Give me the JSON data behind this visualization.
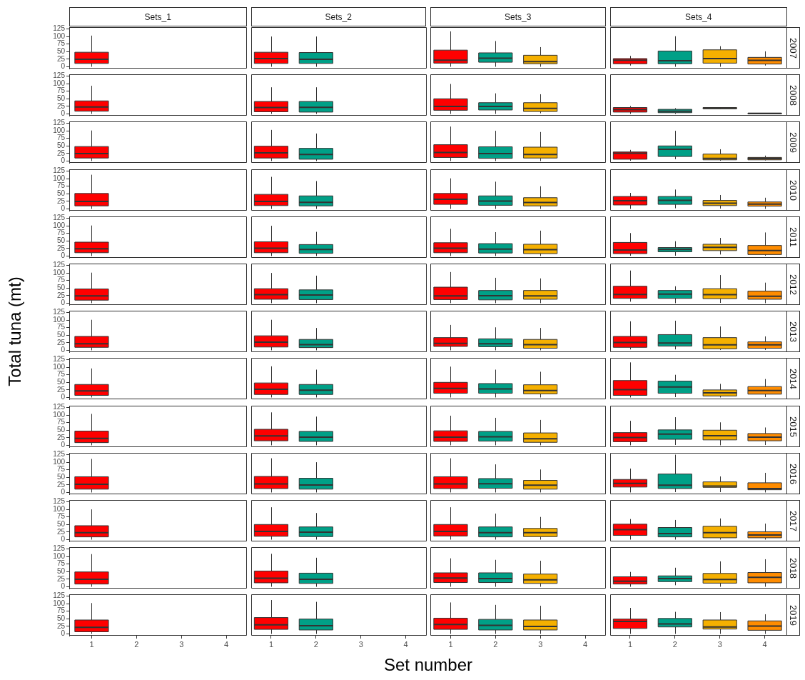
{
  "chart_data": [
    {
      "type": "box",
      "annotations": [
        "Sets_1",
        "Sets_2",
        "Sets_3",
        "Sets_4"
      ],
      "y2label": "2007",
      "categories": [
        "1",
        "2",
        "3",
        "4",
        "1",
        "2",
        "3",
        "4",
        "1",
        "2",
        "3",
        "4",
        "1",
        "2",
        "3",
        "4"
      ],
      "boxes": [
        {
          "low": 0,
          "q1": 11,
          "median": 25,
          "q3": 48,
          "high": 103
        },
        null,
        null,
        null,
        {
          "low": 0,
          "q1": 11,
          "median": 27,
          "q3": 48,
          "high": 100
        },
        {
          "low": 0,
          "q1": 11,
          "median": 25,
          "q3": 47,
          "high": 100
        },
        null,
        null,
        {
          "low": 0,
          "q1": 12,
          "median": 22,
          "q3": 55,
          "high": 117
        },
        {
          "low": 0,
          "q1": 15,
          "median": 28,
          "q3": 46,
          "high": 85
        },
        {
          "low": 0,
          "q1": 10,
          "median": 17,
          "q3": 38,
          "high": 65
        },
        null,
        {
          "low": 4,
          "q1": 10,
          "median": 22,
          "q3": 27,
          "high": 36
        },
        {
          "low": 0,
          "q1": 10,
          "median": 20,
          "q3": 52,
          "high": 101
        },
        {
          "low": 0,
          "q1": 12,
          "median": 27,
          "q3": 56,
          "high": 68
        },
        {
          "low": 4,
          "q1": 9,
          "median": 21,
          "q3": 31,
          "high": 51
        }
      ],
      "colors": [
        "#ff0000",
        null,
        null,
        null,
        "#ff0000",
        "#00a087",
        null,
        null,
        "#ff0000",
        "#00a087",
        "#f5b000",
        null,
        "#ff0000",
        "#00a087",
        "#f5b000",
        "#ff8c00"
      ],
      "ylim": [
        -6,
        131
      ],
      "yticks": [
        0,
        25,
        50,
        75,
        100,
        125
      ],
      "tick_labels": "y"
    },
    {
      "type": "box",
      "y2label": "2008",
      "categories": [
        "1",
        "2",
        "3",
        "4",
        "1",
        "2",
        "3",
        "4",
        "1",
        "2",
        "3",
        "4",
        "1",
        "2",
        "3",
        "4"
      ],
      "boxes": [
        {
          "low": 0,
          "q1": 9,
          "median": 23,
          "q3": 43,
          "high": 93
        },
        null,
        null,
        null,
        {
          "low": 0,
          "q1": 7,
          "median": 21,
          "q3": 41,
          "high": 88
        },
        {
          "low": 0,
          "q1": 6,
          "median": 22,
          "q3": 41,
          "high": 88
        },
        null,
        null,
        {
          "low": 0,
          "q1": 12,
          "median": 25,
          "q3": 50,
          "high": 99
        },
        {
          "low": 0,
          "q1": 13,
          "median": 25,
          "q3": 37,
          "high": 68
        },
        {
          "low": 2,
          "q1": 8,
          "median": 18,
          "q3": 37,
          "high": 65
        },
        null,
        {
          "low": 0,
          "q1": 6,
          "median": 14,
          "q3": 21,
          "high": 26
        },
        {
          "low": 0,
          "q1": 4,
          "median": 9,
          "q3": 15,
          "high": 19
        },
        {
          "low": 16,
          "q1": 17,
          "median": 19,
          "q3": 21,
          "high": 22
        },
        {
          "low": 0,
          "q1": 0,
          "median": 1,
          "q3": 3,
          "high": 3
        }
      ],
      "colors": [
        "#ff0000",
        null,
        null,
        null,
        "#ff0000",
        "#00a087",
        null,
        null,
        "#ff0000",
        "#00a087",
        "#f5b000",
        null,
        "#ff0000",
        "#00a087",
        "#f5b000",
        "#ff8c00"
      ],
      "ylim": [
        -6,
        131
      ],
      "yticks": [
        0,
        25,
        50,
        75,
        100,
        125
      ],
      "tick_labels": "y"
    },
    {
      "type": "box",
      "y2label": "2009",
      "categories": [
        "1",
        "2",
        "3",
        "4",
        "1",
        "2",
        "3",
        "4",
        "1",
        "2",
        "3",
        "4",
        "1",
        "2",
        "3",
        "4"
      ],
      "boxes": [
        {
          "low": 0,
          "q1": 10,
          "median": 25,
          "q3": 48,
          "high": 101
        },
        null,
        null,
        null,
        {
          "low": 0,
          "q1": 10,
          "median": 27,
          "q3": 49,
          "high": 103
        },
        {
          "low": 0,
          "q1": 6,
          "median": 22,
          "q3": 42,
          "high": 91
        },
        null,
        null,
        {
          "low": 0,
          "q1": 12,
          "median": 28,
          "q3": 54,
          "high": 114
        },
        {
          "low": 0,
          "q1": 9,
          "median": 25,
          "q3": 47,
          "high": 100
        },
        {
          "low": 0,
          "q1": 10,
          "median": 22,
          "q3": 46,
          "high": 96
        },
        null,
        {
          "low": 1,
          "q1": 6,
          "median": 26,
          "q3": 30,
          "high": 37
        },
        {
          "low": 6,
          "q1": 15,
          "median": 39,
          "q3": 50,
          "high": 100
        },
        {
          "low": 1,
          "q1": 4,
          "median": 9,
          "q3": 23,
          "high": 39
        },
        {
          "low": 2,
          "q1": 4,
          "median": 8,
          "q3": 12,
          "high": 18
        }
      ],
      "colors": [
        "#ff0000",
        null,
        null,
        null,
        "#ff0000",
        "#00a087",
        null,
        null,
        "#ff0000",
        "#00a087",
        "#f5b000",
        null,
        "#ff0000",
        "#00a087",
        "#f5b000",
        "#ff8c00"
      ],
      "ylim": [
        -6,
        131
      ],
      "yticks": [
        0,
        25,
        50,
        75,
        100,
        125
      ],
      "tick_labels": "y"
    },
    {
      "type": "box",
      "y2label": "2010",
      "categories": [
        "1",
        "2",
        "3",
        "4",
        "1",
        "2",
        "3",
        "4",
        "1",
        "2",
        "3",
        "4",
        "1",
        "2",
        "3",
        "4"
      ],
      "boxes": [
        {
          "low": 0,
          "q1": 10,
          "median": 25,
          "q3": 51,
          "high": 113
        },
        null,
        null,
        null,
        {
          "low": 0,
          "q1": 11,
          "median": 25,
          "q3": 48,
          "high": 106
        },
        {
          "low": 0,
          "q1": 10,
          "median": 22,
          "q3": 43,
          "high": 92
        },
        null,
        null,
        {
          "low": 0,
          "q1": 15,
          "median": 32,
          "q3": 51,
          "high": 101
        },
        {
          "low": 0,
          "q1": 12,
          "median": 26,
          "q3": 43,
          "high": 90
        },
        {
          "low": 0,
          "q1": 10,
          "median": 21,
          "q3": 37,
          "high": 75
        },
        null,
        {
          "low": 0,
          "q1": 13,
          "median": 27,
          "q3": 41,
          "high": 53
        },
        {
          "low": 2,
          "q1": 15,
          "median": 28,
          "q3": 41,
          "high": 64
        },
        {
          "low": 1,
          "q1": 11,
          "median": 19,
          "q3": 28,
          "high": 46
        },
        {
          "low": 0,
          "q1": 9,
          "median": 16,
          "q3": 23,
          "high": 37
        }
      ],
      "colors": [
        "#ff0000",
        null,
        null,
        null,
        "#ff0000",
        "#00a087",
        null,
        null,
        "#ff0000",
        "#00a087",
        "#f5b000",
        null,
        "#ff0000",
        "#00a087",
        "#f5b000",
        "#ff8c00"
      ],
      "ylim": [
        -6,
        131
      ],
      "yticks": [
        0,
        25,
        50,
        75,
        100,
        125
      ],
      "tick_labels": "y"
    },
    {
      "type": "box",
      "y2label": "2011",
      "categories": [
        "1",
        "2",
        "3",
        "4",
        "1",
        "2",
        "3",
        "4",
        "1",
        "2",
        "3",
        "4",
        "1",
        "2",
        "3",
        "4"
      ],
      "boxes": [
        {
          "low": 0,
          "q1": 11,
          "median": 24,
          "q3": 46,
          "high": 101
        },
        null,
        null,
        null,
        {
          "low": 0,
          "q1": 11,
          "median": 26,
          "q3": 47,
          "high": 100
        },
        {
          "low": 0,
          "q1": 9,
          "median": 22,
          "q3": 38,
          "high": 80
        },
        null,
        null,
        {
          "low": 0,
          "q1": 11,
          "median": 26,
          "q3": 44,
          "high": 90
        },
        {
          "low": 0,
          "q1": 10,
          "median": 23,
          "q3": 41,
          "high": 79
        },
        {
          "low": 0,
          "q1": 8,
          "median": 21,
          "q3": 39,
          "high": 84
        },
        null,
        {
          "low": 1,
          "q1": 8,
          "median": 20,
          "q3": 45,
          "high": 76
        },
        {
          "low": 1,
          "q1": 14,
          "median": 22,
          "q3": 28,
          "high": 49
        },
        {
          "low": 5,
          "q1": 18,
          "median": 29,
          "q3": 39,
          "high": 60
        },
        {
          "low": 1,
          "q1": 5,
          "median": 18,
          "q3": 35,
          "high": 78
        }
      ],
      "colors": [
        "#ff0000",
        null,
        null,
        null,
        "#ff0000",
        "#00a087",
        null,
        null,
        "#ff0000",
        "#00a087",
        "#f5b000",
        null,
        "#ff0000",
        "#00a087",
        "#f5b000",
        "#ff8c00"
      ],
      "ylim": [
        -6,
        131
      ],
      "yticks": [
        0,
        25,
        50,
        75,
        100,
        125
      ],
      "tick_labels": "y"
    },
    {
      "type": "box",
      "y2label": "2012",
      "categories": [
        "1",
        "2",
        "3",
        "4",
        "1",
        "2",
        "3",
        "4",
        "1",
        "2",
        "3",
        "4",
        "1",
        "2",
        "3",
        "4"
      ],
      "boxes": [
        {
          "low": 0,
          "q1": 10,
          "median": 24,
          "q3": 47,
          "high": 101
        },
        null,
        null,
        null,
        {
          "low": 0,
          "q1": 13,
          "median": 28,
          "q3": 48,
          "high": 100
        },
        {
          "low": 0,
          "q1": 12,
          "median": 27,
          "q3": 44,
          "high": 91
        },
        null,
        null,
        {
          "low": 0,
          "q1": 12,
          "median": 24,
          "q3": 53,
          "high": 103
        },
        {
          "low": 0,
          "q1": 11,
          "median": 25,
          "q3": 42,
          "high": 84
        },
        {
          "low": 0,
          "q1": 13,
          "median": 24,
          "q3": 42,
          "high": 82
        },
        null,
        {
          "low": 5,
          "q1": 16,
          "median": 29,
          "q3": 56,
          "high": 108
        },
        {
          "low": 0,
          "q1": 16,
          "median": 30,
          "q3": 42,
          "high": 56
        },
        {
          "low": 1,
          "q1": 15,
          "median": 28,
          "q3": 48,
          "high": 93
        },
        {
          "low": 0,
          "q1": 13,
          "median": 23,
          "q3": 40,
          "high": 68
        }
      ],
      "colors": [
        "#ff0000",
        null,
        null,
        null,
        "#ff0000",
        "#00a087",
        null,
        null,
        "#ff0000",
        "#00a087",
        "#f5b000",
        null,
        "#ff0000",
        "#00a087",
        "#f5b000",
        "#ff8c00"
      ],
      "ylim": [
        -6,
        131
      ],
      "yticks": [
        0,
        25,
        50,
        75,
        100,
        125
      ],
      "tick_labels": "y"
    },
    {
      "type": "box",
      "ylabel": "Total tuna (mt)",
      "y2label": "2013",
      "categories": [
        "1",
        "2",
        "3",
        "4",
        "1",
        "2",
        "3",
        "4",
        "1",
        "2",
        "3",
        "4",
        "1",
        "2",
        "3",
        "4"
      ],
      "boxes": [
        {
          "low": 0,
          "q1": 10,
          "median": 22,
          "q3": 46,
          "high": 101
        },
        null,
        null,
        null,
        {
          "low": 0,
          "q1": 11,
          "median": 27,
          "q3": 48,
          "high": 101
        },
        {
          "low": 0,
          "q1": 9,
          "median": 19,
          "q3": 36,
          "high": 74
        },
        null,
        null,
        {
          "low": 0,
          "q1": 13,
          "median": 23,
          "q3": 42,
          "high": 84
        },
        {
          "low": 0,
          "q1": 12,
          "median": 22,
          "q3": 38,
          "high": 76
        },
        {
          "low": 0,
          "q1": 7,
          "median": 19,
          "q3": 36,
          "high": 74
        },
        null,
        {
          "low": 3,
          "q1": 10,
          "median": 26,
          "q3": 46,
          "high": 96
        },
        {
          "low": 3,
          "q1": 14,
          "median": 24,
          "q3": 52,
          "high": 98
        },
        {
          "low": 1,
          "q1": 5,
          "median": 18,
          "q3": 42,
          "high": 79
        },
        {
          "low": 1,
          "q1": 7,
          "median": 18,
          "q3": 28,
          "high": 46
        }
      ],
      "colors": [
        "#ff0000",
        null,
        null,
        null,
        "#ff0000",
        "#00a087",
        null,
        null,
        "#ff0000",
        "#00a087",
        "#f5b000",
        null,
        "#ff0000",
        "#00a087",
        "#f5b000",
        "#ff8c00"
      ],
      "ylim": [
        -6,
        131
      ],
      "yticks": [
        0,
        25,
        50,
        75,
        100,
        125
      ],
      "tick_labels": "y"
    },
    {
      "type": "box",
      "y2label": "2014",
      "categories": [
        "1",
        "2",
        "3",
        "4",
        "1",
        "2",
        "3",
        "4",
        "1",
        "2",
        "3",
        "4",
        "1",
        "2",
        "3",
        "4"
      ],
      "boxes": [
        {
          "low": 0,
          "q1": 7,
          "median": 22,
          "q3": 43,
          "high": 96
        },
        null,
        null,
        null,
        {
          "low": 0,
          "q1": 10,
          "median": 27,
          "q3": 48,
          "high": 103
        },
        {
          "low": 0,
          "q1": 10,
          "median": 24,
          "q3": 43,
          "high": 92
        },
        null,
        null,
        {
          "low": 0,
          "q1": 14,
          "median": 30,
          "q3": 50,
          "high": 102
        },
        {
          "low": 0,
          "q1": 14,
          "median": 28,
          "q3": 46,
          "high": 92
        },
        {
          "low": 0,
          "q1": 12,
          "median": 23,
          "q3": 42,
          "high": 85
        },
        null,
        {
          "low": 0,
          "q1": 7,
          "median": 26,
          "q3": 56,
          "high": 116
        },
        {
          "low": 1,
          "q1": 14,
          "median": 35,
          "q3": 54,
          "high": 75
        },
        {
          "low": 0,
          "q1": 5,
          "median": 15,
          "q3": 25,
          "high": 45
        },
        {
          "low": 1,
          "q1": 11,
          "median": 23,
          "q3": 36,
          "high": 61
        }
      ],
      "colors": [
        "#ff0000",
        null,
        null,
        null,
        "#ff0000",
        "#00a087",
        null,
        null,
        "#ff0000",
        "#00a087",
        "#f5b000",
        null,
        "#ff0000",
        "#00a087",
        "#f5b000",
        "#ff8c00"
      ],
      "ylim": [
        -6,
        131
      ],
      "yticks": [
        0,
        25,
        50,
        75,
        100,
        125
      ],
      "tick_labels": "y"
    },
    {
      "type": "box",
      "y2label": "2015",
      "categories": [
        "1",
        "2",
        "3",
        "4",
        "1",
        "2",
        "3",
        "4",
        "1",
        "2",
        "3",
        "4",
        "1",
        "2",
        "3",
        "4"
      ],
      "boxes": [
        {
          "low": 0,
          "q1": 9,
          "median": 23,
          "q3": 47,
          "high": 104
        },
        null,
        null,
        null,
        {
          "low": 0,
          "q1": 15,
          "median": 31,
          "q3": 53,
          "high": 109
        },
        {
          "low": 0,
          "q1": 13,
          "median": 27,
          "q3": 46,
          "high": 95
        },
        null,
        null,
        {
          "low": 0,
          "q1": 13,
          "median": 27,
          "q3": 48,
          "high": 98
        },
        {
          "low": 0,
          "q1": 14,
          "median": 28,
          "q3": 46,
          "high": 91
        },
        {
          "low": 0,
          "q1": 10,
          "median": 22,
          "q3": 41,
          "high": 84
        },
        null,
        {
          "low": 0,
          "q1": 12,
          "median": 26,
          "q3": 42,
          "high": 81
        },
        {
          "low": 1,
          "q1": 20,
          "median": 37,
          "q3": 51,
          "high": 93
        },
        {
          "low": 0,
          "q1": 18,
          "median": 32,
          "q3": 50,
          "high": 76
        },
        {
          "low": 1,
          "q1": 15,
          "median": 27,
          "q3": 39,
          "high": 59
        }
      ],
      "colors": [
        "#ff0000",
        null,
        null,
        null,
        "#ff0000",
        "#00a087",
        null,
        null,
        "#ff0000",
        "#00a087",
        "#f5b000",
        null,
        "#ff0000",
        "#00a087",
        "#f5b000",
        "#ff8c00"
      ],
      "ylim": [
        -6,
        131
      ],
      "yticks": [
        0,
        25,
        50,
        75,
        100,
        125
      ],
      "tick_labels": "y"
    },
    {
      "type": "box",
      "y2label": "2016",
      "categories": [
        "1",
        "2",
        "3",
        "4",
        "1",
        "2",
        "3",
        "4",
        "1",
        "2",
        "3",
        "4",
        "1",
        "2",
        "3",
        "4"
      ],
      "boxes": [
        {
          "low": 0,
          "q1": 11,
          "median": 27,
          "q3": 52,
          "high": 111
        },
        null,
        null,
        null,
        {
          "low": 0,
          "q1": 13,
          "median": 28,
          "q3": 53,
          "high": 113
        },
        {
          "low": 0,
          "q1": 11,
          "median": 25,
          "q3": 47,
          "high": 100
        },
        null,
        null,
        {
          "low": 0,
          "q1": 13,
          "median": 28,
          "q3": 52,
          "high": 113
        },
        {
          "low": 0,
          "q1": 14,
          "median": 29,
          "q3": 46,
          "high": 93
        },
        {
          "low": 0,
          "q1": 11,
          "median": 24,
          "q3": 40,
          "high": 76
        },
        null,
        {
          "low": 0,
          "q1": 18,
          "median": 30,
          "q3": 43,
          "high": 79
        },
        {
          "low": 1,
          "q1": 13,
          "median": 24,
          "q3": 61,
          "high": 125
        },
        {
          "low": 1,
          "q1": 17,
          "median": 21,
          "q3": 35,
          "high": 53
        },
        {
          "low": 0,
          "q1": 9,
          "median": 13,
          "q3": 32,
          "high": 65
        }
      ],
      "colors": [
        "#ff0000",
        null,
        null,
        null,
        "#ff0000",
        "#00a087",
        null,
        null,
        "#ff0000",
        "#00a087",
        "#f5b000",
        null,
        "#ff0000",
        "#00a087",
        "#f5b000",
        "#ff8c00"
      ],
      "ylim": [
        -6,
        131
      ],
      "yticks": [
        0,
        25,
        50,
        75,
        100,
        125
      ],
      "tick_labels": "y"
    },
    {
      "type": "box",
      "y2label": "2017",
      "categories": [
        "1",
        "2",
        "3",
        "4",
        "1",
        "2",
        "3",
        "4",
        "1",
        "2",
        "3",
        "4",
        "1",
        "2",
        "3",
        "4"
      ],
      "boxes": [
        {
          "low": 0,
          "q1": 9,
          "median": 23,
          "q3": 46,
          "high": 100
        },
        null,
        null,
        null,
        {
          "low": 0,
          "q1": 11,
          "median": 27,
          "q3": 50,
          "high": 107
        },
        {
          "low": 0,
          "q1": 10,
          "median": 25,
          "q3": 42,
          "high": 88
        },
        null,
        null,
        {
          "low": 0,
          "q1": 12,
          "median": 27,
          "q3": 50,
          "high": 107
        },
        {
          "low": 0,
          "q1": 9,
          "median": 23,
          "q3": 42,
          "high": 86
        },
        {
          "low": 0,
          "q1": 10,
          "median": 23,
          "q3": 37,
          "high": 75
        },
        null,
        {
          "low": 0,
          "q1": 14,
          "median": 33,
          "q3": 51,
          "high": 68
        },
        {
          "low": 0,
          "q1": 9,
          "median": 20,
          "q3": 40,
          "high": 65
        },
        {
          "low": 0,
          "q1": 6,
          "median": 23,
          "q3": 44,
          "high": 70
        },
        {
          "low": 0,
          "q1": 6,
          "median": 15,
          "q3": 26,
          "high": 53
        }
      ],
      "colors": [
        "#ff0000",
        null,
        null,
        null,
        "#ff0000",
        "#00a087",
        null,
        null,
        "#ff0000",
        "#00a087",
        "#f5b000",
        null,
        "#ff0000",
        "#00a087",
        "#f5b000",
        "#ff8c00"
      ],
      "ylim": [
        -6,
        131
      ],
      "yticks": [
        0,
        25,
        50,
        75,
        100,
        125
      ],
      "tick_labels": "y"
    },
    {
      "type": "box",
      "y2label": "2018",
      "categories": [
        "1",
        "2",
        "3",
        "4",
        "1",
        "2",
        "3",
        "4",
        "1",
        "2",
        "3",
        "4",
        "1",
        "2",
        "3",
        "4"
      ],
      "boxes": [
        {
          "low": 0,
          "q1": 9,
          "median": 25,
          "q3": 49,
          "high": 108
        },
        null,
        null,
        null,
        {
          "low": 0,
          "q1": 13,
          "median": 28,
          "q3": 52,
          "high": 109
        },
        {
          "low": 0,
          "q1": 11,
          "median": 25,
          "q3": 45,
          "high": 96
        },
        null,
        null,
        {
          "low": 0,
          "q1": 14,
          "median": 29,
          "q3": 46,
          "high": 94
        },
        {
          "low": 0,
          "q1": 14,
          "median": 27,
          "q3": 46,
          "high": 89
        },
        {
          "low": 0,
          "q1": 11,
          "median": 23,
          "q3": 42,
          "high": 86
        },
        null,
        {
          "low": 0,
          "q1": 9,
          "median": 18,
          "q3": 33,
          "high": 49
        },
        {
          "low": 5,
          "q1": 17,
          "median": 27,
          "q3": 36,
          "high": 63
        },
        {
          "low": 0,
          "q1": 12,
          "median": 24,
          "q3": 44,
          "high": 84
        },
        {
          "low": 0,
          "q1": 13,
          "median": 31,
          "q3": 47,
          "high": 91
        }
      ],
      "colors": [
        "#ff0000",
        null,
        null,
        null,
        "#ff0000",
        "#00a087",
        null,
        null,
        "#ff0000",
        "#00a087",
        "#f5b000",
        null,
        "#ff0000",
        "#00a087",
        "#f5b000",
        "#ff8c00"
      ],
      "ylim": [
        -6,
        131
      ],
      "yticks": [
        0,
        25,
        50,
        75,
        100,
        125
      ],
      "tick_labels": "y"
    },
    {
      "type": "box",
      "xlabel": "Set number",
      "y2label": "2019",
      "categories": [
        "1",
        "2",
        "3",
        "4",
        "1",
        "2",
        "3",
        "4",
        "1",
        "2",
        "3",
        "4",
        "1",
        "2",
        "3",
        "4"
      ],
      "boxes": [
        {
          "low": 0,
          "q1": 7,
          "median": 22,
          "q3": 46,
          "high": 102
        },
        null,
        null,
        null,
        {
          "low": 0,
          "q1": 15,
          "median": 30,
          "q3": 54,
          "high": 112
        },
        {
          "low": 0,
          "q1": 13,
          "median": 27,
          "q3": 49,
          "high": 106
        },
        null,
        null,
        {
          "low": 0,
          "q1": 15,
          "median": 31,
          "q3": 52,
          "high": 104
        },
        {
          "low": 0,
          "q1": 13,
          "median": 28,
          "q3": 48,
          "high": 96
        },
        {
          "low": 0,
          "q1": 13,
          "median": 25,
          "q3": 46,
          "high": 93
        },
        null,
        {
          "low": 0,
          "q1": 18,
          "median": 41,
          "q3": 49,
          "high": 86
        },
        {
          "low": 0,
          "q1": 23,
          "median": 33,
          "q3": 51,
          "high": 73
        },
        {
          "low": 0,
          "q1": 16,
          "median": 23,
          "q3": 46,
          "high": 72
        },
        {
          "low": 0,
          "q1": 12,
          "median": 26,
          "q3": 43,
          "high": 65
        }
      ],
      "colors": [
        "#ff0000",
        null,
        null,
        null,
        "#ff0000",
        "#00a087",
        null,
        null,
        "#ff0000",
        "#00a087",
        "#f5b000",
        null,
        "#ff0000",
        "#00a087",
        "#f5b000",
        "#ff8c00"
      ],
      "ylim": [
        -6,
        131
      ],
      "yticks": [
        0,
        25,
        50,
        75,
        100,
        125
      ]
    }
  ]
}
